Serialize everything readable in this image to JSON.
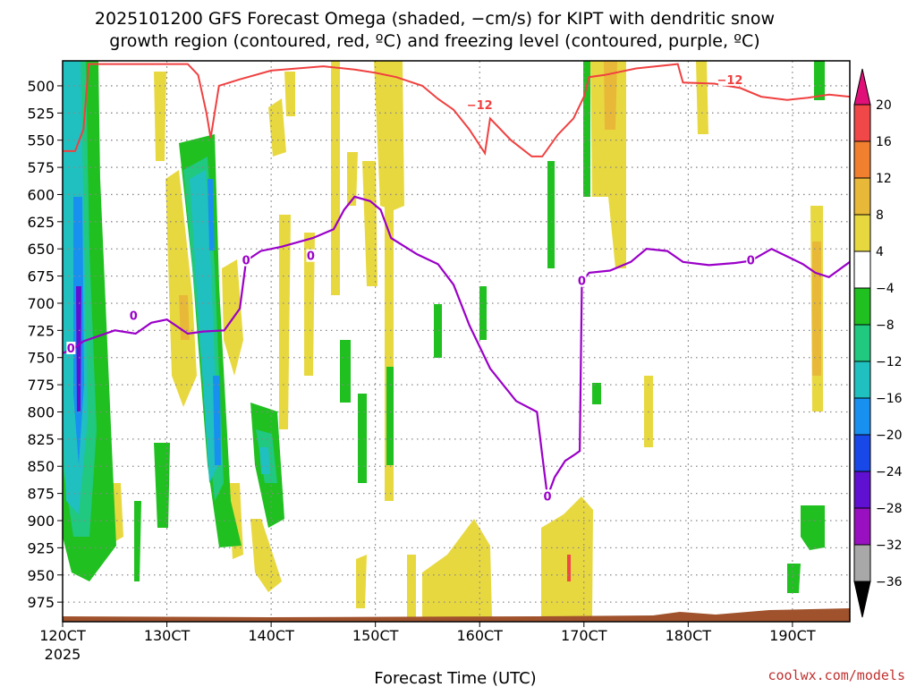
{
  "header": {
    "title_line1": "2025101200 GFS Forecast Omega (shaded, −cm/s) for KIPT with dendritic snow",
    "title_line2": "growth region (contoured, red, ºC) and freezing level (contoured, purple, ºC)"
  },
  "footer": {
    "xlabel": "Forecast Time (UTC)",
    "credit": "coolwx.com/models"
  },
  "colors": {
    "freezing_line": "#9a00c8",
    "dgz_line": "#f04040",
    "terrain": "#a0522d",
    "grid": "#888888"
  },
  "chart_data": {
    "type": "heatmap",
    "x_ticks": [
      "120CT",
      "130CT",
      "140CT",
      "150CT",
      "160CT",
      "170CT",
      "180CT",
      "190CT"
    ],
    "x_year": "2025",
    "x_range_days": [
      12.0,
      19.55
    ],
    "y_ticks": [
      500,
      525,
      550,
      575,
      600,
      625,
      650,
      675,
      700,
      725,
      750,
      775,
      800,
      825,
      850,
      875,
      900,
      925,
      950,
      975
    ],
    "y_range_hpa": [
      477,
      993
    ],
    "grid": true,
    "colorbar": {
      "labels": [
        "20",
        "16",
        "12",
        "8",
        "4",
        "−4",
        "−8",
        "−12",
        "−16",
        "−20",
        "−24",
        "−28",
        "−32",
        "−36"
      ],
      "colors": [
        "#f04848",
        "#f08030",
        "#e8b838",
        "#e8d840",
        "#ffffff",
        "#20c020",
        "#20c880",
        "#20c0c0",
        "#1890f0",
        "#1848e8",
        "#6010d0",
        "#9810c0",
        "#a8a8a8"
      ],
      "top_arrow_color": "#e01078",
      "bottom_arrow_color": "#000000"
    },
    "freezing_level": {
      "label": "0",
      "label_points": [
        [
          12.08,
          742
        ],
        [
          12.68,
          712
        ],
        [
          13.76,
          661
        ],
        [
          14.38,
          657
        ],
        [
          16.65,
          878
        ],
        [
          16.98,
          680
        ],
        [
          18.6,
          661
        ]
      ],
      "points": [
        [
          12.0,
          746
        ],
        [
          12.1,
          742
        ],
        [
          12.2,
          735
        ],
        [
          12.35,
          730
        ],
        [
          12.5,
          725
        ],
        [
          12.7,
          728
        ],
        [
          12.85,
          718
        ],
        [
          13.0,
          715
        ],
        [
          13.2,
          728
        ],
        [
          13.35,
          726
        ],
        [
          13.55,
          725
        ],
        [
          13.7,
          705
        ],
        [
          13.76,
          661
        ],
        [
          13.9,
          652
        ],
        [
          14.1,
          648
        ],
        [
          14.4,
          640
        ],
        [
          14.6,
          632
        ],
        [
          14.7,
          614
        ],
        [
          14.8,
          602
        ],
        [
          14.95,
          606
        ],
        [
          15.05,
          614
        ],
        [
          15.15,
          640
        ],
        [
          15.4,
          655
        ],
        [
          15.6,
          664
        ],
        [
          15.75,
          683
        ],
        [
          15.9,
          720
        ],
        [
          16.1,
          760
        ],
        [
          16.35,
          790
        ],
        [
          16.55,
          800
        ],
        [
          16.6,
          840
        ],
        [
          16.65,
          878
        ],
        [
          16.72,
          860
        ],
        [
          16.82,
          845
        ],
        [
          16.9,
          840
        ],
        [
          16.96,
          836
        ],
        [
          16.98,
          680
        ],
        [
          17.05,
          672
        ],
        [
          17.25,
          670
        ],
        [
          17.45,
          662
        ],
        [
          17.6,
          650
        ],
        [
          17.8,
          652
        ],
        [
          17.95,
          662
        ],
        [
          18.2,
          665
        ],
        [
          18.45,
          663
        ],
        [
          18.6,
          661
        ],
        [
          18.8,
          650
        ],
        [
          18.95,
          657
        ],
        [
          19.1,
          664
        ],
        [
          19.22,
          672
        ],
        [
          19.35,
          676
        ],
        [
          19.55,
          662
        ]
      ]
    },
    "dgz_contour": {
      "label": "−12",
      "label_points": [
        [
          16.0,
          518
        ],
        [
          18.4,
          495
        ]
      ],
      "points": [
        [
          12.0,
          560
        ],
        [
          12.12,
          560
        ],
        [
          12.2,
          540
        ],
        [
          12.25,
          480
        ],
        [
          13.2,
          480
        ],
        [
          13.3,
          490
        ],
        [
          13.38,
          525
        ],
        [
          13.42,
          548
        ],
        [
          13.5,
          500
        ],
        [
          13.7,
          494
        ],
        [
          14.0,
          486
        ],
        [
          14.5,
          482
        ],
        [
          14.8,
          485
        ],
        [
          15.0,
          488
        ],
        [
          15.2,
          492
        ],
        [
          15.45,
          500
        ],
        [
          15.6,
          512
        ],
        [
          15.75,
          522
        ],
        [
          15.9,
          540
        ],
        [
          16.05,
          562
        ],
        [
          16.1,
          530
        ],
        [
          16.3,
          550
        ],
        [
          16.5,
          565
        ],
        [
          16.6,
          565
        ],
        [
          16.75,
          545
        ],
        [
          16.9,
          530
        ],
        [
          17.0,
          510
        ],
        [
          17.05,
          492
        ],
        [
          17.2,
          490
        ],
        [
          17.5,
          484
        ],
        [
          17.9,
          480
        ],
        [
          17.95,
          497
        ],
        [
          18.25,
          498
        ],
        [
          18.5,
          502
        ],
        [
          18.7,
          510
        ],
        [
          18.95,
          513
        ],
        [
          19.15,
          511
        ],
        [
          19.35,
          508
        ],
        [
          19.55,
          510
        ]
      ]
    }
  }
}
